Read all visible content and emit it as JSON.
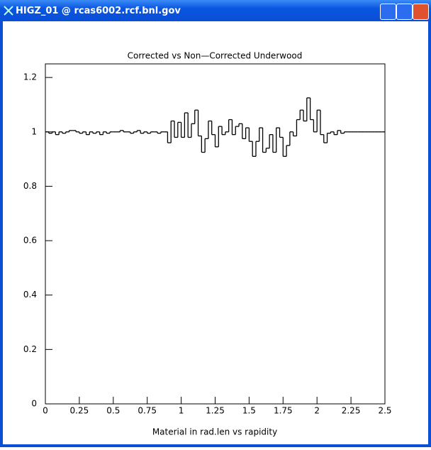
{
  "window": {
    "title": "HIGZ_01 @ rcas6002.rcf.bnl.gov"
  },
  "chart_data": {
    "type": "histogram",
    "title": "Corrected vs Non—Corrected Underwood",
    "x_label": "Material in rad.len vs rapidity",
    "bins": [
      0,
      0.025,
      0.05,
      0.075,
      0.1,
      0.125,
      0.15,
      0.175,
      0.2,
      0.225,
      0.25,
      0.275,
      0.3,
      0.325,
      0.35,
      0.375,
      0.4,
      0.425,
      0.45,
      0.475,
      0.5,
      0.525,
      0.55,
      0.575,
      0.6,
      0.625,
      0.65,
      0.675,
      0.7,
      0.725,
      0.75,
      0.775,
      0.8,
      0.825,
      0.85,
      0.875,
      0.9,
      0.925,
      0.95,
      0.975,
      1,
      1.025,
      1.05,
      1.075,
      1.1,
      1.125,
      1.15,
      1.175,
      1.2,
      1.225,
      1.25,
      1.275,
      1.3,
      1.325,
      1.35,
      1.375,
      1.4,
      1.425,
      1.45,
      1.475,
      1.5,
      1.525,
      1.55,
      1.575,
      1.6,
      1.625,
      1.65,
      1.675,
      1.7,
      1.725,
      1.75,
      1.775,
      1.8,
      1.825,
      1.85,
      1.875,
      1.9,
      1.925,
      1.95,
      1.975,
      2,
      2.025,
      2.05,
      2.075,
      2.1,
      2.125,
      2.15,
      2.175,
      2.2,
      2.225,
      2.25,
      2.275,
      2.3,
      2.325,
      2.35,
      2.375,
      2.4,
      2.425,
      2.45,
      2.475,
      2.5
    ],
    "values": [
      1.0,
      0.995,
      1.0,
      0.99,
      1.0,
      0.995,
      1.0,
      1.005,
      1.005,
      1.0,
      0.995,
      1.0,
      0.99,
      1.0,
      0.995,
      1.0,
      0.99,
      1.0,
      0.995,
      1.0,
      1.0,
      1.0,
      1.005,
      1.0,
      1.0,
      0.995,
      1.0,
      1.005,
      0.995,
      1.0,
      0.995,
      1.0,
      1.0,
      0.995,
      1.0,
      1.0,
      0.96,
      1.04,
      0.98,
      1.035,
      0.98,
      1.07,
      0.98,
      1.03,
      1.08,
      0.985,
      0.925,
      0.975,
      1.04,
      0.99,
      0.945,
      1.02,
      0.99,
      1.0,
      1.045,
      0.99,
      1.02,
      1.03,
      0.975,
      1.015,
      0.965,
      0.91,
      0.965,
      1.015,
      0.925,
      0.94,
      0.99,
      0.925,
      1.015,
      0.98,
      0.91,
      0.95,
      1.0,
      0.985,
      1.045,
      1.08,
      1.04,
      1.125,
      1.045,
      1.0,
      1.08,
      0.99,
      0.96,
      0.995,
      1.0,
      0.99,
      1.005,
      0.995,
      1,
      1,
      1,
      1,
      1,
      1,
      1,
      1,
      1,
      1,
      1,
      1
    ],
    "color": "#000000",
    "xlim": [
      0,
      2.5
    ],
    "xticks": [
      0,
      0.25,
      0.5,
      0.75,
      1,
      1.25,
      1.5,
      1.75,
      2,
      2.25,
      2.5
    ],
    "ylim": [
      0,
      1.25
    ],
    "yticks": [
      0,
      0.2,
      0.4,
      0.6,
      0.8,
      1,
      1.2
    ]
  }
}
